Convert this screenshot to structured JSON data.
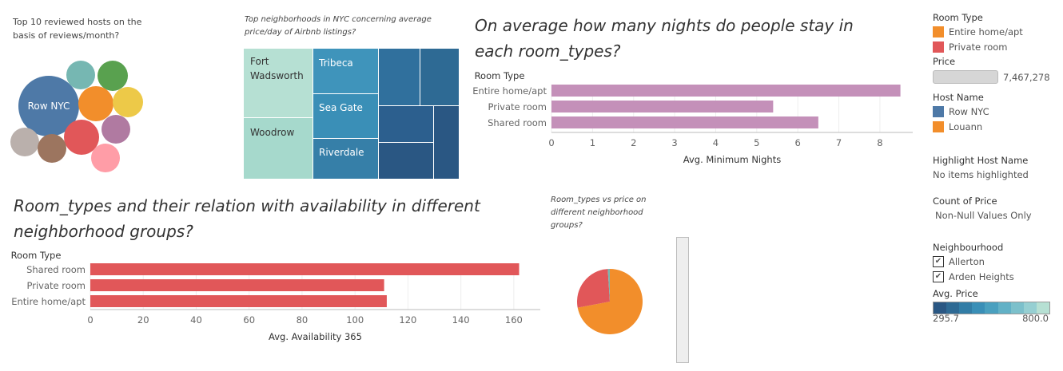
{
  "colors": {
    "bubbles": [
      "#4e79a7",
      "#76b7b2",
      "#59a14f",
      "#f28e2b",
      "#edc948",
      "#e15759",
      "#b07aa1",
      "#bab0ac",
      "#9c755f",
      "#ff9da7"
    ],
    "treemap_light": "#b6e0d3",
    "treemap_mid": "#3a8fb7",
    "treemap_dark": "#2c5f8e",
    "nights_bar": "#c490b9",
    "avail_bar": "#e15759",
    "pie_entire": "#f28e2b",
    "pie_private": "#e15759",
    "pie_shared": "#76b7b2",
    "entire": "#f28e2b",
    "private": "#e15759",
    "row_nyc": "#4e79a7"
  },
  "chart_data": [
    {
      "type": "bubble",
      "title": "Top 10 reviewed hosts on the basis of reviews/month?",
      "labels": [
        "Row NYC"
      ],
      "categories": [
        "Row NYC",
        "",
        "",
        "",
        "",
        "",
        "",
        "",
        "",
        ""
      ],
      "values": [
        10,
        3,
        3,
        4,
        3,
        4,
        3,
        2.6,
        2.6,
        2.6
      ]
    },
    {
      "type": "treemap",
      "title": "Top neighborhoods in NYC concerning average price/day of Airbnb listings?",
      "categories": [
        "Fort Wadsworth",
        "Woodrow",
        "Tribeca",
        "Sea Gate",
        "Riverdale",
        "",
        "",
        "",
        "",
        "",
        ""
      ],
      "labels": [
        "Fort Wadsworth",
        "Woodrow",
        "Tribeca",
        "Sea Gate",
        "Riverdale"
      ]
    },
    {
      "type": "bar",
      "orientation": "horizontal",
      "title": "On average how many nights do people stay in each room_types?",
      "header": "Room Type",
      "categories": [
        "Entire home/apt",
        "Private room",
        "Shared room"
      ],
      "values": [
        8.5,
        5.4,
        6.5
      ],
      "xlabel": "Avg. Minimum Nights",
      "xlim": [
        0,
        8.8
      ],
      "ticks": [
        "0",
        "1",
        "2",
        "3",
        "4",
        "5",
        "6",
        "7",
        "8"
      ],
      "grid": true
    },
    {
      "type": "bar",
      "orientation": "horizontal",
      "title": "Room_types and their relation with availability in different neighborhood groups?",
      "header": "Room Type",
      "categories": [
        "Shared room",
        "Private room",
        "Entire home/apt"
      ],
      "values": [
        162,
        111,
        112
      ],
      "xlabel": "Avg. Availability 365",
      "xlim": [
        0,
        170
      ],
      "ticks": [
        "0",
        "20",
        "40",
        "60",
        "80",
        "100",
        "120",
        "140",
        "160"
      ],
      "grid": true
    },
    {
      "type": "pie",
      "title": "Room_types vs price on different neighborhood groups?",
      "categories": [
        "Entire home/apt",
        "Private room",
        "Shared room"
      ],
      "values": [
        72,
        27,
        1
      ]
    }
  ],
  "legend": {
    "room_type_head": "Room Type",
    "room_type_items": [
      "Entire home/apt",
      "Private room"
    ],
    "price_head": "Price",
    "price_value": "7,467,278",
    "host_head": "Host Name",
    "host_items": [
      "Row NYC",
      "Louann"
    ],
    "highlight_head": "Highlight Host Name",
    "highlight_value": "No items highlighted",
    "count_head": "Count of Price",
    "count_value": "Non-Null Values Only",
    "neigh_head": "Neighbourhood",
    "neigh_items": [
      "Allerton",
      "Arden Heights"
    ],
    "avgprice_head": "Avg. Price",
    "avgprice_min": "295.7",
    "avgprice_max": "800.0"
  }
}
